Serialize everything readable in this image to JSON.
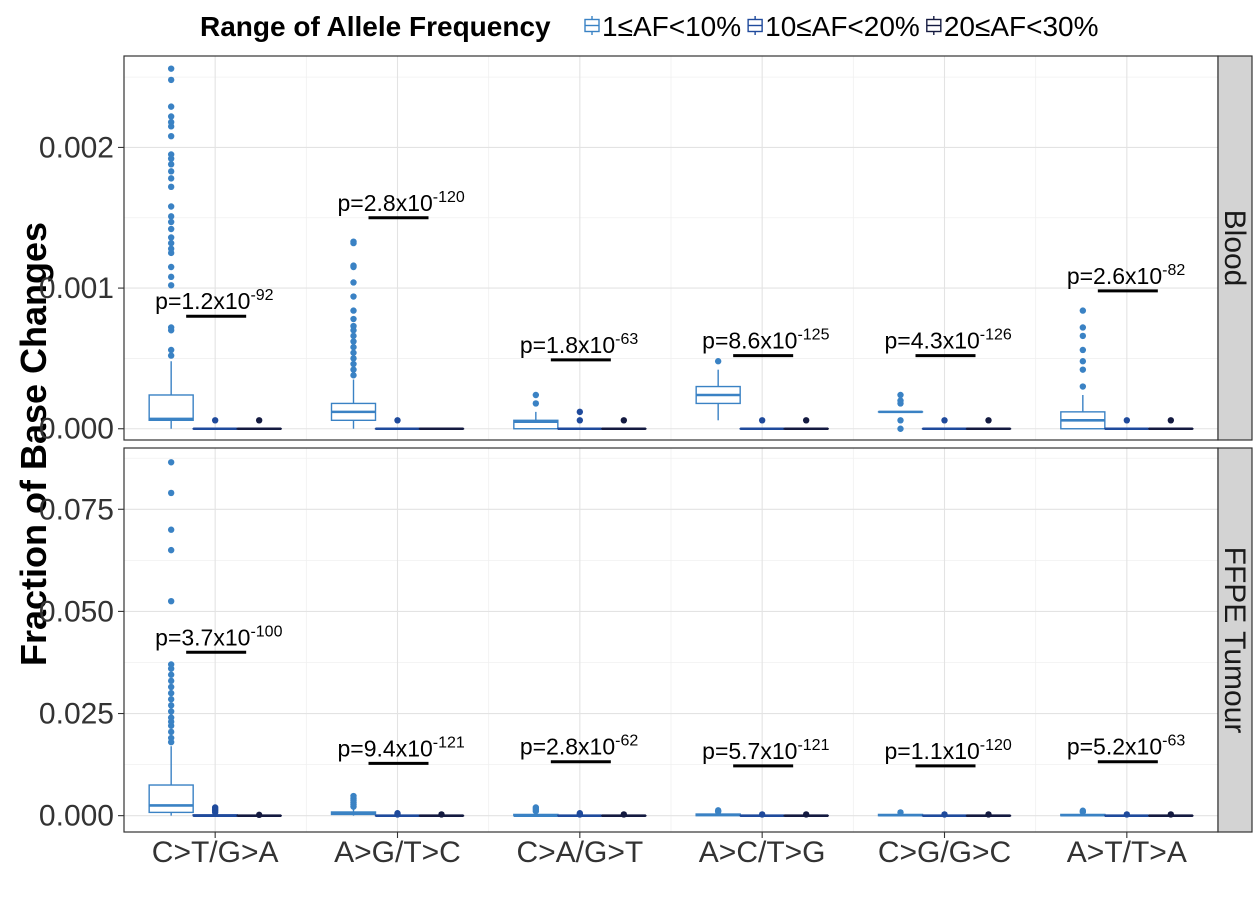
{
  "chart_data": {
    "type": "boxplot",
    "ylabel": "Fraction of Base Changes",
    "legend": {
      "title": "Range of Allele Frequency",
      "position": "top",
      "entries": [
        "1≤AF<10%",
        "10≤AF<20%",
        "20≤AF<30%"
      ]
    },
    "colors": [
      "#3a82c4",
      "#1f4a9c",
      "#141a40"
    ],
    "categories": [
      "C>T/G>A",
      "A>G/T>C",
      "C>A/G>T",
      "A>C/T>G",
      "C>G/G>C",
      "A>T/T>A"
    ],
    "grid": true,
    "panels": [
      {
        "strip": "Blood",
        "ylim": [
          -8e-05,
          0.00265
        ],
        "yticks": [
          0.0,
          0.001,
          0.002
        ],
        "yticklabels": [
          "0.000",
          "0.001",
          "0.002"
        ],
        "pvalues": [
          {
            "base": "1.2x10",
            "exp": "-92",
            "bar_y": 0.0008
          },
          {
            "base": "2.8x10",
            "exp": "-120",
            "bar_y": 0.0015
          },
          {
            "base": "1.8x10",
            "exp": "-63",
            "bar_y": 0.00049
          },
          {
            "base": "8.6x10",
            "exp": "-125",
            "bar_y": 0.00052
          },
          {
            "base": "4.3x10",
            "exp": "-126",
            "bar_y": 0.00052
          },
          {
            "base": "2.6x10",
            "exp": "-82",
            "bar_y": 0.00098
          }
        ],
        "boxes": [
          [
            {
              "q1": 6e-05,
              "median": 7e-05,
              "q3": 0.00024,
              "lo": 0.0,
              "hi": 0.00048,
              "outliers": [
                0.00052,
                0.00056,
                0.0007,
                0.00072,
                0.00102,
                0.00108,
                0.00115,
                0.00125,
                0.00128,
                0.00132,
                0.00136,
                0.00142,
                0.00147,
                0.00151,
                0.00158,
                0.00172,
                0.00178,
                0.00183,
                0.00188,
                0.00192,
                0.00195,
                0.00208,
                0.00215,
                0.00218,
                0.00222,
                0.00229,
                0.00248,
                0.00256
              ]
            },
            {
              "q1": 0.0,
              "median": 0.0,
              "q3": 0.0,
              "lo": 0.0,
              "hi": 0.0,
              "outliers": [
                6e-05
              ]
            },
            {
              "q1": 0.0,
              "median": 0.0,
              "q3": 0.0,
              "lo": 0.0,
              "hi": 0.0,
              "outliers": [
                6e-05
              ]
            }
          ],
          [
            {
              "q1": 6e-05,
              "median": 0.00012,
              "q3": 0.00018,
              "lo": 0.0,
              "hi": 0.00035,
              "outliers": [
                0.00038,
                0.00042,
                0.00046,
                0.0005,
                0.00054,
                0.00058,
                0.00062,
                0.00066,
                0.0007,
                0.00073,
                0.00078,
                0.00084,
                0.00094,
                0.00104,
                0.00115,
                0.00116,
                0.00132,
                0.00133
              ]
            },
            {
              "q1": 0.0,
              "median": 0.0,
              "q3": 0.0,
              "lo": 0.0,
              "hi": 0.0,
              "outliers": [
                6e-05
              ]
            },
            {
              "q1": 0.0,
              "median": 0.0,
              "q3": 0.0,
              "lo": 0.0,
              "hi": 0.0,
              "outliers": []
            }
          ],
          [
            {
              "q1": 0.0,
              "median": 5e-05,
              "q3": 6e-05,
              "lo": 0.0,
              "hi": 0.00012,
              "outliers": [
                0.00018,
                0.00024
              ]
            },
            {
              "q1": 0.0,
              "median": 0.0,
              "q3": 0.0,
              "lo": 0.0,
              "hi": 0.0,
              "outliers": [
                6e-05,
                0.00012
              ]
            },
            {
              "q1": 0.0,
              "median": 0.0,
              "q3": 0.0,
              "lo": 0.0,
              "hi": 0.0,
              "outliers": [
                6e-05
              ]
            }
          ],
          [
            {
              "q1": 0.00018,
              "median": 0.00024,
              "q3": 0.0003,
              "lo": 6e-05,
              "hi": 0.00042,
              "outliers": [
                0.00048
              ]
            },
            {
              "q1": 0.0,
              "median": 0.0,
              "q3": 0.0,
              "lo": 0.0,
              "hi": 0.0,
              "outliers": [
                6e-05
              ]
            },
            {
              "q1": 0.0,
              "median": 0.0,
              "q3": 0.0,
              "lo": 0.0,
              "hi": 0.0,
              "outliers": [
                6e-05
              ]
            }
          ],
          [
            {
              "q1": 0.00012,
              "median": 0.00012,
              "q3": 0.00012,
              "lo": 0.00012,
              "hi": 0.00012,
              "outliers": [
                0.0,
                6e-05,
                0.00018,
                0.0002,
                0.00024
              ]
            },
            {
              "q1": 0.0,
              "median": 0.0,
              "q3": 0.0,
              "lo": 0.0,
              "hi": 0.0,
              "outliers": [
                6e-05
              ]
            },
            {
              "q1": 0.0,
              "median": 0.0,
              "q3": 0.0,
              "lo": 0.0,
              "hi": 0.0,
              "outliers": [
                6e-05
              ]
            }
          ],
          [
            {
              "q1": 0.0,
              "median": 6e-05,
              "q3": 0.00012,
              "lo": 0.0,
              "hi": 0.00024,
              "outliers": [
                0.0003,
                0.00042,
                0.00048,
                0.00056,
                0.00066,
                0.00072,
                0.00084
              ]
            },
            {
              "q1": 0.0,
              "median": 0.0,
              "q3": 0.0,
              "lo": 0.0,
              "hi": 0.0,
              "outliers": [
                6e-05
              ]
            },
            {
              "q1": 0.0,
              "median": 0.0,
              "q3": 0.0,
              "lo": 0.0,
              "hi": 0.0,
              "outliers": [
                6e-05
              ]
            }
          ]
        ]
      },
      {
        "strip": "FFPE Tumour",
        "ylim": [
          -0.004,
          0.09
        ],
        "yticks": [
          0.0,
          0.025,
          0.05,
          0.075
        ],
        "yticklabels": [
          "0.000",
          "0.025",
          "0.050",
          "0.075"
        ],
        "pvalues": [
          {
            "base": "3.7x10",
            "exp": "-100",
            "bar_y": 0.04
          },
          {
            "base": "9.4x10",
            "exp": "-121",
            "bar_y": 0.0128
          },
          {
            "base": "2.8x10",
            "exp": "-62",
            "bar_y": 0.0132
          },
          {
            "base": "5.7x10",
            "exp": "-121",
            "bar_y": 0.0122
          },
          {
            "base": "1.1x10",
            "exp": "-120",
            "bar_y": 0.0122
          },
          {
            "base": "5.2x10",
            "exp": "-63",
            "bar_y": 0.0132
          }
        ],
        "boxes": [
          [
            {
              "q1": 0.0008,
              "median": 0.0025,
              "q3": 0.0075,
              "lo": 0.0,
              "hi": 0.017,
              "outliers": [
                0.018,
                0.019,
                0.0205,
                0.022,
                0.023,
                0.024,
                0.0255,
                0.027,
                0.0285,
                0.03,
                0.0315,
                0.033,
                0.0345,
                0.036,
                0.037,
                0.0525,
                0.065,
                0.07,
                0.079,
                0.0865
              ]
            },
            {
              "q1": 0.0,
              "median": 0.0,
              "q3": 0.0002,
              "lo": 0.0,
              "hi": 0.0005,
              "outliers": [
                0.0008,
                0.0012,
                0.0016,
                0.002
              ]
            },
            {
              "q1": 0.0,
              "median": 0.0,
              "q3": 0.0,
              "lo": 0.0,
              "hi": 0.0,
              "outliers": [
                0.0002
              ]
            }
          ],
          [
            {
              "q1": 0.0003,
              "median": 0.0006,
              "q3": 0.0009,
              "lo": 0.0,
              "hi": 0.0018,
              "outliers": [
                0.0022,
                0.0027,
                0.0032,
                0.0037,
                0.0042,
                0.0048
              ]
            },
            {
              "q1": 0.0,
              "median": 0.0,
              "q3": 0.0,
              "lo": 0.0,
              "hi": 0.0,
              "outliers": [
                0.0003,
                0.0006
              ]
            },
            {
              "q1": 0.0,
              "median": 0.0,
              "q3": 0.0,
              "lo": 0.0,
              "hi": 0.0,
              "outliers": [
                0.0003
              ]
            }
          ],
          [
            {
              "q1": 0.0,
              "median": 0.0,
              "q3": 0.0003,
              "lo": 0.0,
              "hi": 0.0007,
              "outliers": [
                0.0011,
                0.0016,
                0.002
              ]
            },
            {
              "q1": 0.0,
              "median": 0.0,
              "q3": 0.0,
              "lo": 0.0,
              "hi": 0.0,
              "outliers": [
                0.0003,
                0.0006
              ]
            },
            {
              "q1": 0.0,
              "median": 0.0,
              "q3": 0.0,
              "lo": 0.0,
              "hi": 0.0,
              "outliers": [
                0.0003
              ]
            }
          ],
          [
            {
              "q1": 0.0,
              "median": 0.0002,
              "q3": 0.0004,
              "lo": 0.0,
              "hi": 0.0007,
              "outliers": [
                0.001,
                0.0013
              ]
            },
            {
              "q1": 0.0,
              "median": 0.0,
              "q3": 0.0,
              "lo": 0.0,
              "hi": 0.0,
              "outliers": [
                0.0003
              ]
            },
            {
              "q1": 0.0,
              "median": 0.0,
              "q3": 0.0,
              "lo": 0.0,
              "hi": 0.0,
              "outliers": [
                0.0003
              ]
            }
          ],
          [
            {
              "q1": 0.0,
              "median": 0.0001,
              "q3": 0.0003,
              "lo": 0.0,
              "hi": 0.0005,
              "outliers": [
                0.0008
              ]
            },
            {
              "q1": 0.0,
              "median": 0.0,
              "q3": 0.0,
              "lo": 0.0,
              "hi": 0.0,
              "outliers": [
                0.0003
              ]
            },
            {
              "q1": 0.0,
              "median": 0.0,
              "q3": 0.0,
              "lo": 0.0,
              "hi": 0.0,
              "outliers": [
                0.0003
              ]
            }
          ],
          [
            {
              "q1": 0.0,
              "median": 0.0001,
              "q3": 0.0003,
              "lo": 0.0,
              "hi": 0.0006,
              "outliers": [
                0.0009,
                0.0012
              ]
            },
            {
              "q1": 0.0,
              "median": 0.0,
              "q3": 0.0,
              "lo": 0.0,
              "hi": 0.0,
              "outliers": [
                0.0003
              ]
            },
            {
              "q1": 0.0,
              "median": 0.0,
              "q3": 0.0,
              "lo": 0.0,
              "hi": 0.0,
              "outliers": [
                0.0003
              ]
            }
          ]
        ]
      }
    ]
  }
}
